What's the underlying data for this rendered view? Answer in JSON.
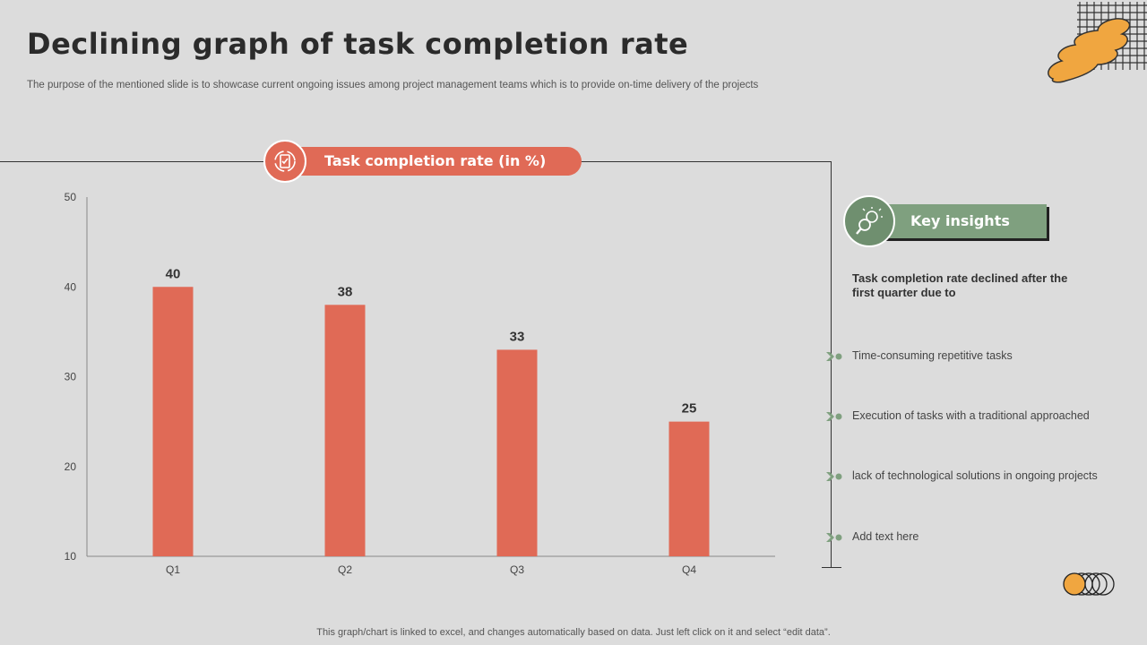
{
  "slide": {
    "title": "Declining graph of task completion rate",
    "subtitle": "The purpose of the mentioned slide is to showcase current ongoing issues among project management teams which is to provide on-time delivery of the projects",
    "footer": "This graph/chart is linked to excel, and changes automatically based on data. Just left click on it and select “edit data”."
  },
  "chart_header": {
    "label": "Task completion rate (in %)",
    "icon": "task-checklist-icon"
  },
  "chart_data": {
    "type": "bar",
    "categories": [
      "Q1",
      "Q2",
      "Q3",
      "Q4"
    ],
    "values": [
      40,
      38,
      33,
      25
    ],
    "ylim": [
      10,
      50
    ],
    "yticks": [
      10,
      20,
      30,
      40,
      50
    ],
    "data_labels": true,
    "grid": false,
    "bar_color": "#e06a56"
  },
  "insights": {
    "label": "Key insights",
    "icon": "lightbulb-magnifier-icon",
    "heading": "Task completion rate declined after the first quarter due to",
    "items": [
      "Time-consuming  repetitive tasks",
      "Execution of tasks with a traditional  approached",
      "lack of technological  solutions in ongoing  projects",
      "Add text here"
    ],
    "accent_color": "#7fa07f"
  },
  "colors": {
    "background": "#dcdcdc",
    "accent_orange": "#f0a640",
    "accent_red": "#e06a56",
    "accent_green": "#7fa07f"
  }
}
